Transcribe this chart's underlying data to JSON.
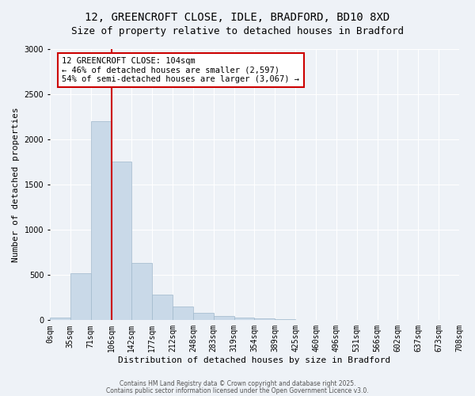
{
  "title_line1": "12, GREENCROFT CLOSE, IDLE, BRADFORD, BD10 8XD",
  "title_line2": "Size of property relative to detached houses in Bradford",
  "xlabel": "Distribution of detached houses by size in Bradford",
  "ylabel": "Number of detached properties",
  "bin_labels": [
    "0sqm",
    "35sqm",
    "71sqm",
    "106sqm",
    "142sqm",
    "177sqm",
    "212sqm",
    "248sqm",
    "283sqm",
    "319sqm",
    "354sqm",
    "389sqm",
    "425sqm",
    "460sqm",
    "496sqm",
    "531sqm",
    "566sqm",
    "602sqm",
    "637sqm",
    "673sqm",
    "708sqm"
  ],
  "bar_values": [
    25,
    520,
    2200,
    1750,
    630,
    285,
    155,
    80,
    45,
    30,
    20,
    10,
    5,
    3,
    2,
    1,
    0,
    0,
    0,
    0
  ],
  "bar_color": "#c9d9e8",
  "bar_edge_color": "#a0b8cc",
  "red_line_index": 3,
  "red_line_color": "#cc0000",
  "annotation_title": "12 GREENCROFT CLOSE: 104sqm",
  "annotation_line2": "← 46% of detached houses are smaller (2,597)",
  "annotation_line3": "54% of semi-detached houses are larger (3,067) →",
  "annotation_box_color": "#ffffff",
  "annotation_box_edge": "#cc0000",
  "ylim": [
    0,
    3000
  ],
  "yticks": [
    0,
    500,
    1000,
    1500,
    2000,
    2500,
    3000
  ],
  "background_color": "#eef2f7",
  "grid_color": "#ffffff",
  "footer_line1": "Contains HM Land Registry data © Crown copyright and database right 2025.",
  "footer_line2": "Contains public sector information licensed under the Open Government Licence v3.0."
}
